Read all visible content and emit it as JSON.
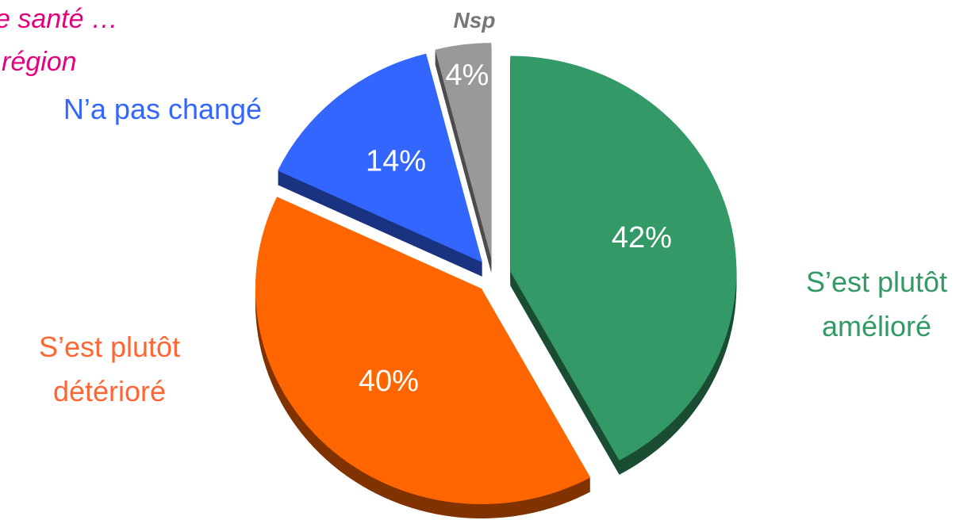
{
  "chart_data": {
    "type": "pie",
    "title": [
      "e santé …",
      "région"
    ],
    "categories": [
      [
        "S’est plutôt",
        "amélioré"
      ],
      [
        "S’est plutôt",
        "détérioré"
      ],
      [
        "N’a pas changé"
      ],
      [
        "Nsp"
      ]
    ],
    "values": [
      42,
      40,
      14,
      4
    ],
    "value_labels": [
      "42%",
      "40%",
      "14%",
      "4%"
    ],
    "colors": [
      "#339966",
      "#ff6600",
      "#3366ff",
      "#999999"
    ]
  }
}
